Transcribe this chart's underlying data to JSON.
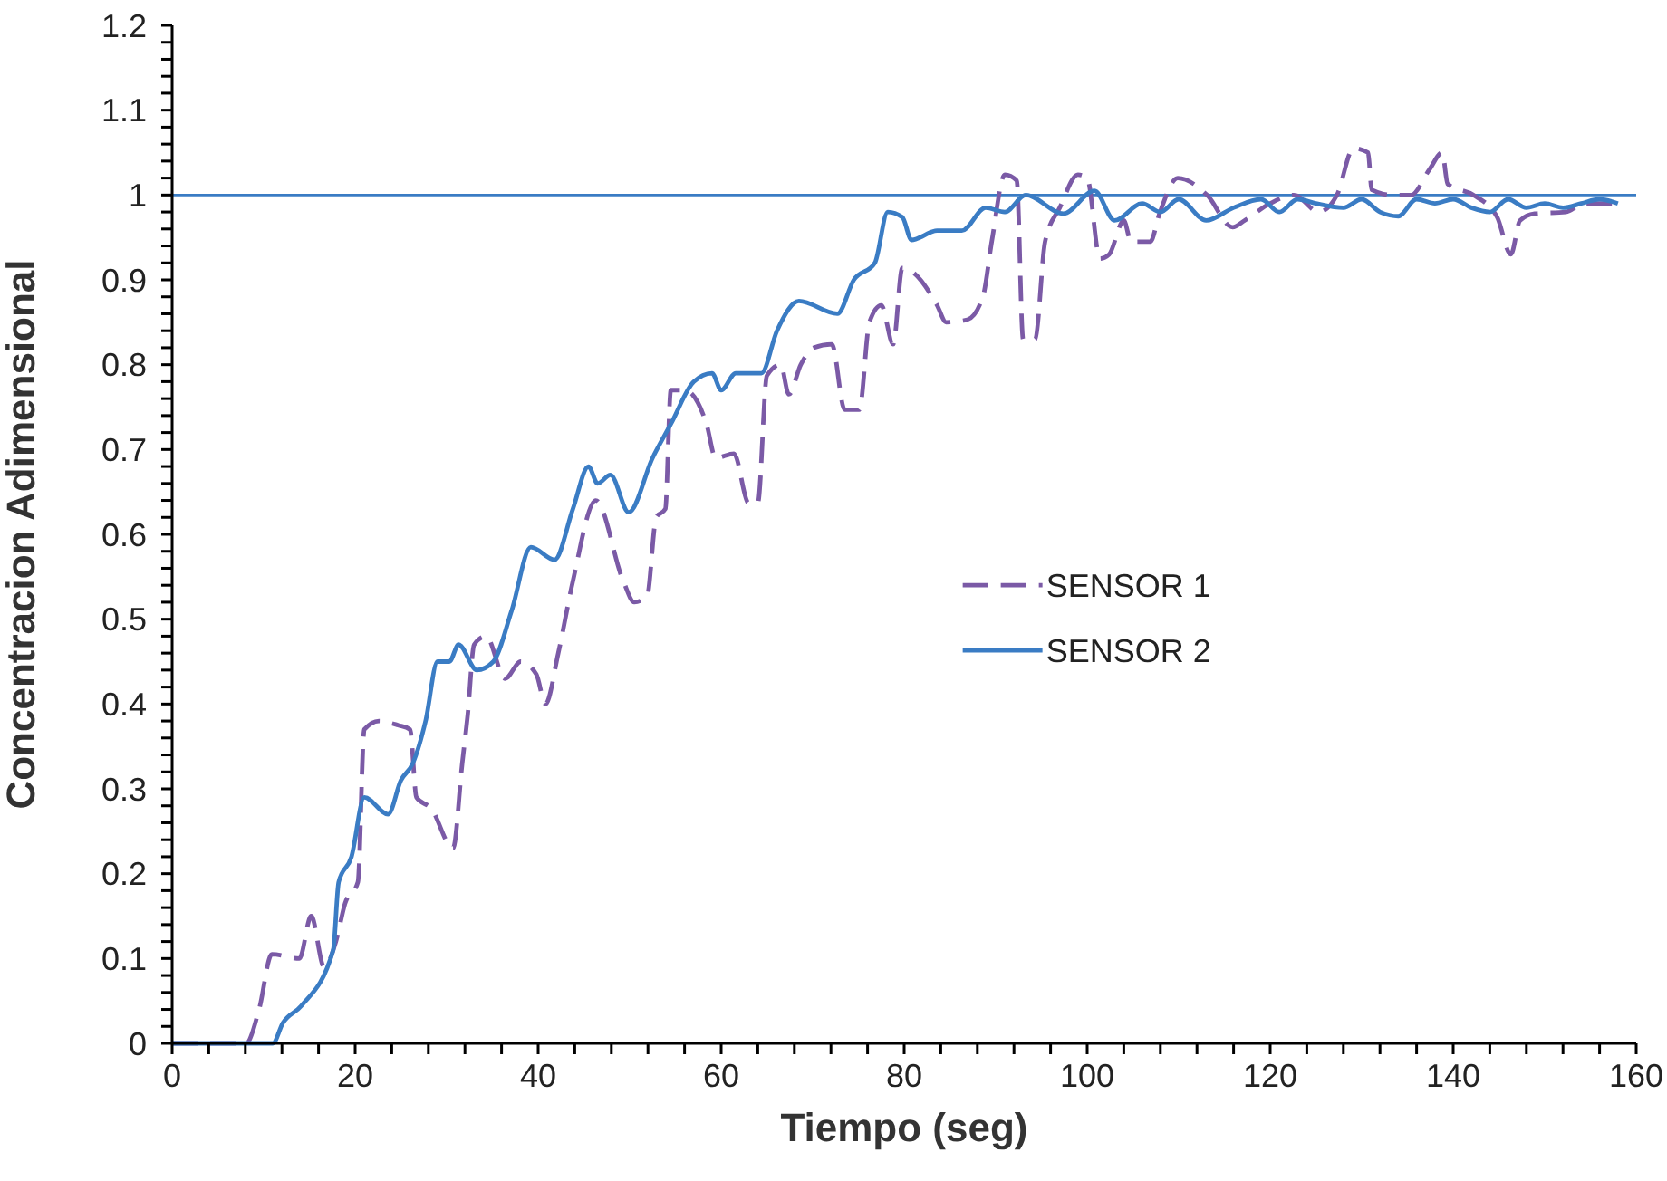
{
  "chart_data": {
    "type": "line",
    "xlabel": "Tiempo (seg)",
    "ylabel": "Concentracion Adimensional",
    "xlim": [
      0,
      160
    ],
    "ylim": [
      0,
      1.2
    ],
    "xticks": [
      0,
      {
        "value": 4,
        "label": null
      },
      {
        "value": 8,
        "label": null
      },
      {
        "value": 12,
        "label": null
      },
      {
        "value": 16,
        "label": null
      },
      20,
      {
        "value": 24,
        "label": null
      },
      {
        "value": 28,
        "label": null
      },
      {
        "value": 32,
        "label": null
      },
      {
        "value": 36,
        "label": null
      },
      40,
      {
        "value": 44,
        "label": null
      },
      {
        "value": 48,
        "label": null
      },
      {
        "value": 52,
        "label": null
      },
      {
        "value": 56,
        "label": null
      },
      60,
      {
        "value": 64,
        "label": null
      },
      {
        "value": 68,
        "label": null
      },
      {
        "value": 72,
        "label": null
      },
      {
        "value": 76,
        "label": null
      },
      80,
      {
        "value": 84,
        "label": null
      },
      {
        "value": 88,
        "label": null
      },
      {
        "value": 92,
        "label": null
      },
      {
        "value": 96,
        "label": null
      },
      100,
      {
        "value": 104,
        "label": null
      },
      {
        "value": 108,
        "label": null
      },
      {
        "value": 112,
        "label": null
      },
      {
        "value": 116,
        "label": null
      },
      120,
      {
        "value": 124,
        "label": null
      },
      {
        "value": 128,
        "label": null
      },
      {
        "value": 132,
        "label": null
      },
      {
        "value": 136,
        "label": null
      },
      140,
      {
        "value": 144,
        "label": null
      },
      {
        "value": 148,
        "label": null
      },
      {
        "value": 152,
        "label": null
      },
      {
        "value": 156,
        "label": null
      },
      160
    ],
    "yticks": [
      0,
      {
        "value": 0.02,
        "label": null
      },
      {
        "value": 0.04,
        "label": null
      },
      {
        "value": 0.06,
        "label": null
      },
      {
        "value": 0.08,
        "label": null
      },
      0.1,
      {
        "value": 0.12,
        "label": null
      },
      {
        "value": 0.14,
        "label": null
      },
      {
        "value": 0.16,
        "label": null
      },
      {
        "value": 0.18,
        "label": null
      },
      0.2,
      {
        "value": 0.22,
        "label": null
      },
      {
        "value": 0.24,
        "label": null
      },
      {
        "value": 0.26,
        "label": null
      },
      {
        "value": 0.28,
        "label": null
      },
      0.3,
      {
        "value": 0.32,
        "label": null
      },
      {
        "value": 0.34,
        "label": null
      },
      {
        "value": 0.36,
        "label": null
      },
      {
        "value": 0.38,
        "label": null
      },
      0.4,
      {
        "value": 0.42,
        "label": null
      },
      {
        "value": 0.44,
        "label": null
      },
      {
        "value": 0.46,
        "label": null
      },
      {
        "value": 0.48,
        "label": null
      },
      0.5,
      {
        "value": 0.52,
        "label": null
      },
      {
        "value": 0.54,
        "label": null
      },
      {
        "value": 0.56,
        "label": null
      },
      {
        "value": 0.58,
        "label": null
      },
      0.6,
      {
        "value": 0.62,
        "label": null
      },
      {
        "value": 0.64,
        "label": null
      },
      {
        "value": 0.66,
        "label": null
      },
      {
        "value": 0.68,
        "label": null
      },
      0.7,
      {
        "value": 0.72,
        "label": null
      },
      {
        "value": 0.74,
        "label": null
      },
      {
        "value": 0.76,
        "label": null
      },
      {
        "value": 0.78,
        "label": null
      },
      0.8,
      {
        "value": 0.82,
        "label": null
      },
      {
        "value": 0.84,
        "label": null
      },
      {
        "value": 0.86,
        "label": null
      },
      {
        "value": 0.88,
        "label": null
      },
      0.9,
      {
        "value": 0.92,
        "label": null
      },
      {
        "value": 0.94,
        "label": null
      },
      {
        "value": 0.96,
        "label": null
      },
      {
        "value": 0.98,
        "label": null
      },
      1,
      {
        "value": 1.02,
        "label": null
      },
      {
        "value": 1.04,
        "label": null
      },
      {
        "value": 1.06,
        "label": null
      },
      {
        "value": 1.08,
        "label": null
      },
      1.1,
      {
        "value": 1.12,
        "label": null
      },
      {
        "value": 1.14,
        "label": null
      },
      {
        "value": 1.16,
        "label": null
      },
      {
        "value": 1.18,
        "label": null
      },
      1.2
    ],
    "grid": false,
    "legend": "right",
    "marker": "none",
    "ref_lines": [
      {
        "axis": "y",
        "value": 1,
        "color": "#3a7cc4"
      }
    ],
    "series": [
      {
        "name": "SENSOR 1",
        "color": "#7b5aa6",
        "line_style": "dashed",
        "x": [
          0,
          8.1,
          9.5,
          10.9,
          13.9,
          15.2,
          16.6,
          17.9,
          18.9,
          20.3,
          21,
          22.6,
          24.7,
          26,
          26.7,
          28.3,
          30.7,
          31.7,
          32.3,
          33,
          34.3,
          36.4,
          38.1,
          39.8,
          40.8,
          42.2,
          43.8,
          46.3,
          49.3,
          50.5,
          51.9,
          52.9,
          53.9,
          54.5,
          56,
          58.4,
          59.4,
          61.4,
          63,
          64,
          65,
          66.5,
          67.4,
          68.7,
          70.1,
          72.1,
          73.5,
          75.1,
          76.2,
          77.5,
          78.8,
          79.8,
          80.8,
          83.6,
          84.6,
          86.9,
          88.6,
          89.6,
          91,
          92.3,
          93,
          94.3,
          95.4,
          97,
          99,
          100,
          101.4,
          102.4,
          104,
          104.8,
          106.9,
          107.9,
          109.9,
          113.1,
          115.9,
          117.2,
          120,
          122.6,
          125.3,
          127.3,
          129.1,
          130.7,
          131.1,
          133.4,
          135.4,
          137.4,
          138.8,
          139.4,
          142.2,
          144.8,
          146.3,
          147.3,
          148.9,
          152.3,
          154.3,
          157.4
        ],
        "values": [
          0,
          0,
          0.04,
          0.105,
          0.1,
          0.15,
          0.09,
          0.12,
          0.165,
          0.19,
          0.37,
          0.38,
          0.375,
          0.37,
          0.29,
          0.277,
          0.23,
          0.33,
          0.387,
          0.47,
          0.48,
          0.43,
          0.45,
          0.435,
          0.4,
          0.46,
          0.545,
          0.64,
          0.545,
          0.52,
          0.527,
          0.62,
          0.63,
          0.77,
          0.77,
          0.73,
          0.69,
          0.695,
          0.637,
          0.637,
          0.787,
          0.8,
          0.765,
          0.8,
          0.82,
          0.824,
          0.747,
          0.747,
          0.85,
          0.87,
          0.824,
          0.914,
          0.91,
          0.87,
          0.85,
          0.853,
          0.88,
          0.947,
          1.024,
          1.017,
          0.83,
          0.83,
          0.945,
          0.985,
          1.024,
          1.02,
          0.925,
          0.93,
          0.97,
          0.945,
          0.945,
          0.978,
          1.02,
          1,
          0.962,
          0.97,
          0.99,
          1,
          0.98,
          1,
          1.055,
          1.05,
          1.006,
          1,
          1,
          1.03,
          1.05,
          1.013,
          1,
          0.974,
          0.93,
          0.97,
          0.978,
          0.98,
          0.99,
          0.99
        ]
      },
      {
        "name": "SENSOR 2",
        "color": "#3a7cc4",
        "line_style": "solid",
        "x": [
          0,
          11,
          12.1,
          14.1,
          17.6,
          18.2,
          19.6,
          21,
          23.6,
          25,
          26.3,
          27.7,
          29,
          30.3,
          31.3,
          33.3,
          35.1,
          37.1,
          39.2,
          41.8,
          43.8,
          45.5,
          46.5,
          47.9,
          49.9,
          52.5,
          54.5,
          57,
          59,
          60,
          61.6,
          64.4,
          66.1,
          68.5,
          72.7,
          74.5,
          76.8,
          78.2,
          79.8,
          80.8,
          83.6,
          86.3,
          88.9,
          91,
          93.3,
          97.4,
          100.8,
          103,
          106,
          108,
          110,
          113,
          116,
          119,
          121,
          123,
          125,
          128,
          130,
          132,
          134,
          136,
          138,
          140,
          142,
          144,
          146,
          148,
          150,
          152,
          154,
          156,
          158
        ],
        "values": [
          0,
          0,
          0.024,
          0.044,
          0.11,
          0.19,
          0.22,
          0.29,
          0.27,
          0.31,
          0.33,
          0.38,
          0.45,
          0.45,
          0.47,
          0.44,
          0.45,
          0.51,
          0.585,
          0.57,
          0.63,
          0.68,
          0.66,
          0.67,
          0.626,
          0.69,
          0.73,
          0.78,
          0.79,
          0.77,
          0.79,
          0.79,
          0.84,
          0.875,
          0.86,
          0.9,
          0.92,
          0.98,
          0.974,
          0.947,
          0.958,
          0.958,
          0.985,
          0.98,
          1,
          0.978,
          1.005,
          0.97,
          0.99,
          0.98,
          0.995,
          0.97,
          0.985,
          0.995,
          0.98,
          0.995,
          0.99,
          0.985,
          0.995,
          0.98,
          0.975,
          0.995,
          0.99,
          0.995,
          0.985,
          0.98,
          0.995,
          0.985,
          0.99,
          0.985,
          0.99,
          0.995,
          0.99
        ]
      }
    ]
  }
}
